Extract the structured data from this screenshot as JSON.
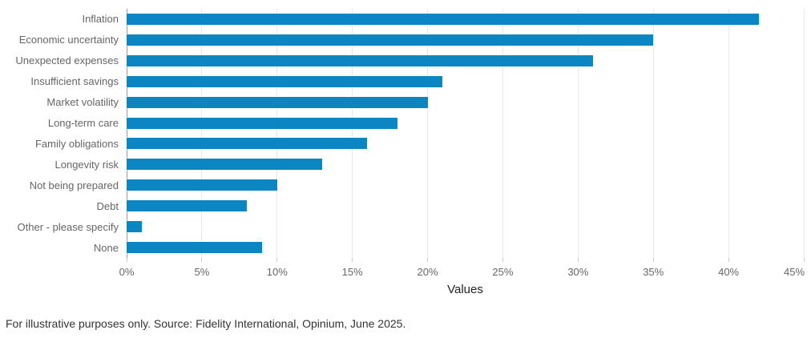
{
  "chart_data": {
    "type": "bar",
    "orientation": "horizontal",
    "title": "",
    "xlabel": "Values",
    "ylabel": "",
    "categories": [
      "Inflation",
      "Economic uncertainty",
      "Unexpected expenses",
      "Insufficient savings",
      "Market volatility",
      "Long-term care",
      "Family obligations",
      "Longevity risk",
      "Not being prepared",
      "Debt",
      "Other - please specify",
      "None"
    ],
    "values": [
      42,
      35,
      31,
      21,
      20,
      18,
      16,
      13,
      10,
      8,
      1,
      9
    ],
    "value_suffix": "%",
    "xlim": [
      0,
      45
    ],
    "x_tick_step": 5,
    "x_ticks": [
      "0%",
      "5%",
      "10%",
      "15%",
      "20%",
      "25%",
      "30%",
      "35%",
      "40%",
      "45%"
    ],
    "grid": true,
    "legend": false,
    "bar_color": "#0b86c3",
    "grid_color": "#e6e6e6",
    "zero_axis_color": "#999999",
    "label_color": "#666666"
  },
  "footer": {
    "text": "For illustrative purposes only. Source: Fidelity International, Opinium, June 2025."
  }
}
